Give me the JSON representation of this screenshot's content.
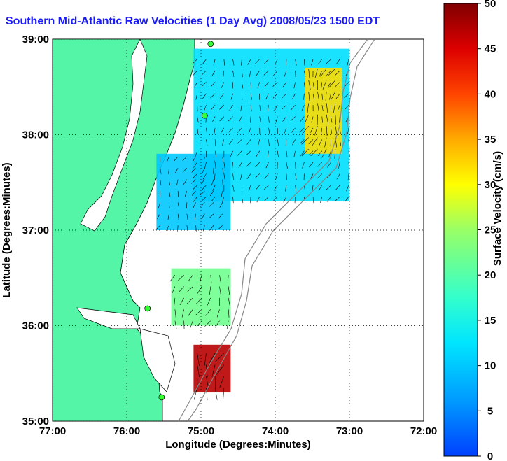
{
  "chart_data": {
    "type": "heatmap",
    "title": "Southern Mid-Atlantic Raw Velocities (1 Day Avg) 2008/05/23 1500 EDT",
    "xlabel": "Longitude (Degrees:Minutes)",
    "ylabel": "Latitude (Degrees:Minutes)",
    "colorbar_label": "Surface Velocity (cm/s)",
    "xlim": [
      -77,
      -72
    ],
    "ylim": [
      35,
      39
    ],
    "x_ticks": [
      {
        "value": -77,
        "label": "77:00"
      },
      {
        "value": -76,
        "label": "76:00"
      },
      {
        "value": -75,
        "label": "75:00"
      },
      {
        "value": -74,
        "label": "74:00"
      },
      {
        "value": -73,
        "label": "73:00"
      },
      {
        "value": -72,
        "label": "72:00"
      }
    ],
    "y_ticks": [
      {
        "value": 35,
        "label": "35:00"
      },
      {
        "value": 36,
        "label": "36:00"
      },
      {
        "value": 37,
        "label": "37:00"
      },
      {
        "value": 38,
        "label": "38:00"
      },
      {
        "value": 39,
        "label": "39:00"
      }
    ],
    "colorbar_range": [
      0,
      50
    ],
    "colorbar_ticks": [
      "0",
      "5",
      "10",
      "15",
      "20",
      "25",
      "30",
      "35",
      "40",
      "45",
      "50"
    ],
    "grid": true,
    "land_color": "#55f5a8",
    "regions": [
      {
        "lon_min": -75.1,
        "lon_max": -73.0,
        "lat_min": 37.3,
        "lat_max": 38.9,
        "speed": 12
      },
      {
        "lon_min": -75.6,
        "lon_max": -74.6,
        "lat_min": 37.0,
        "lat_max": 37.8,
        "speed": 10
      },
      {
        "lon_min": -73.6,
        "lon_max": -73.1,
        "lat_min": 37.8,
        "lat_max": 38.7,
        "speed": 32
      },
      {
        "lon_min": -75.4,
        "lon_max": -74.6,
        "lat_min": 36.0,
        "lat_max": 36.6,
        "speed": 22
      },
      {
        "lon_min": -75.1,
        "lon_max": -74.6,
        "lat_min": 35.3,
        "lat_max": 35.8,
        "speed": 47
      }
    ],
    "stations": [
      {
        "lon": -74.87,
        "lat": 38.95
      },
      {
        "lon": -74.95,
        "lat": 38.2
      },
      {
        "lon": -75.72,
        "lat": 36.18
      },
      {
        "lon": -75.53,
        "lat": 35.25
      }
    ]
  }
}
